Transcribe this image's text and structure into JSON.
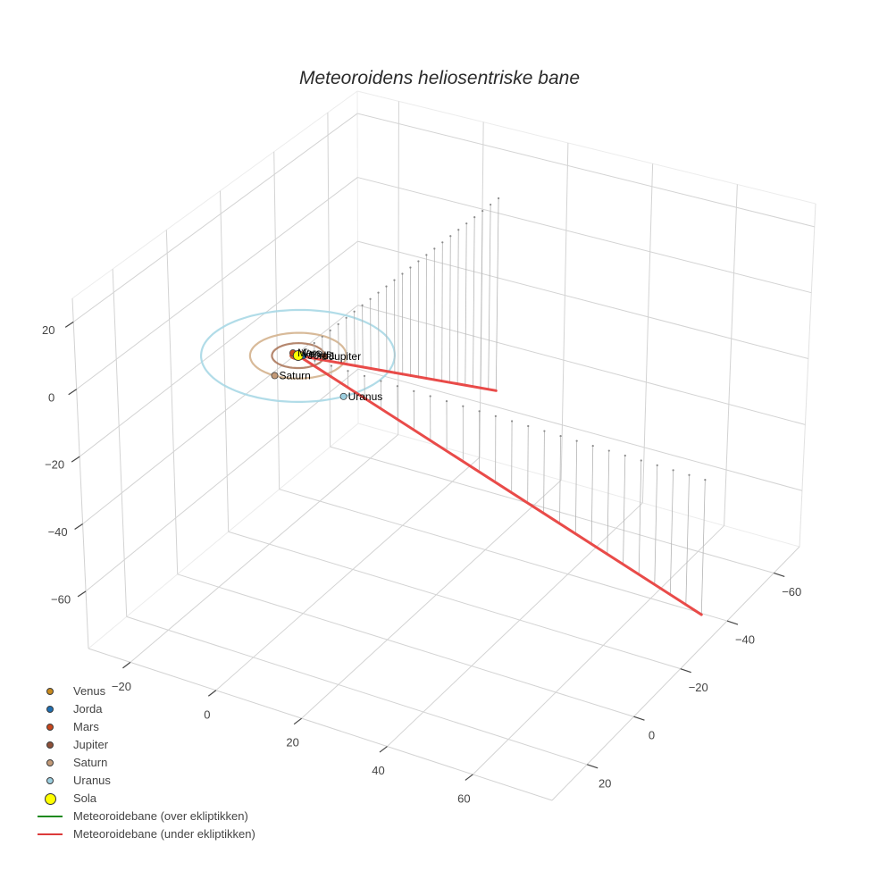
{
  "chart_data": {
    "type": "scatter3d",
    "title": "Meteoroidens heliosentriske bane",
    "axes": {
      "x": {
        "title": "",
        "range": [
          -29.8,
          78.5
        ],
        "tickvals": [
          -20,
          0,
          20,
          40,
          60
        ],
        "ticktext": [
          "−20",
          "0",
          "20",
          "40",
          "60"
        ]
      },
      "y": {
        "title": "",
        "range": [
          -71,
          35
        ],
        "tickvals": [
          20,
          0,
          -20,
          -40,
          -60
        ],
        "ticktext": [
          "20",
          "0",
          "−20",
          "−40",
          "−60"
        ]
      },
      "z": {
        "title": "",
        "range": [
          -77,
          27
        ],
        "tickvals": [
          20,
          0,
          -20,
          -40,
          -60
        ],
        "ticktext": [
          "20",
          "0",
          "−20",
          "−40",
          "−60"
        ]
      }
    },
    "grid": true,
    "legend_position": "bottom-left",
    "planets": [
      {
        "name": "Venus",
        "color": "#c98a1d",
        "orbit_color": "#c98a1d",
        "orbit_radius": 0.72,
        "position": [
          -0.5,
          -0.52,
          0
        ]
      },
      {
        "name": "Jorda",
        "color": "#1f6fb2",
        "orbit_color": "#1f6fb2",
        "orbit_radius": 1.0,
        "position": [
          0.86,
          -0.51,
          0
        ]
      },
      {
        "name": "Mars",
        "color": "#c9461c",
        "orbit_color": "#c9461c",
        "orbit_radius": 1.52,
        "position": [
          -1.46,
          -0.41,
          0
        ]
      },
      {
        "name": "Jupiter",
        "color": "#8f5038",
        "orbit_color": "#ad7a5e",
        "orbit_radius": 5.2,
        "position": [
          4.66,
          -2.31,
          0
        ]
      },
      {
        "name": "Saturn",
        "color": "#c39a78",
        "orbit_color": "#d4b28e",
        "orbit_radius": 9.54,
        "position": [
          0.28,
          9.53,
          0
        ]
      },
      {
        "name": "Uranus",
        "color": "#9ccfe0",
        "orbit_color": "#a8d8e6",
        "orbit_radius": 19.2,
        "position": [
          16.4,
          9.97,
          0
        ]
      }
    ],
    "sun": {
      "name": "Sola",
      "color": "#ffff00",
      "position": [
        0,
        0,
        0
      ]
    },
    "meteoroid_path": {
      "above_ecliptic": {
        "name": "Meteoroidebane (over ekliptikken)",
        "color": "#1f8a1f",
        "points": []
      },
      "below_ecliptic": {
        "name": "Meteoroidebane (under ekliptikken)",
        "color": "#e8413f",
        "arms": [
          {
            "start": [
              0,
              0,
              0
            ],
            "end": [
              3.8,
              -71,
              -55
            ],
            "drop_top_end_z": 4.6
          },
          {
            "start": [
              0,
              0,
              0
            ],
            "end": [
              78.5,
              -28.6,
              -67.1
            ],
            "drop_top_end_z": -27.3
          }
        ]
      }
    },
    "drop_lines": {
      "color": "#b4b4b4",
      "dot_color": "#8a8a8a",
      "count_per_arm": 25
    },
    "legend": [
      {
        "label": "Venus",
        "symbol": "circle",
        "color": "#c98a1d"
      },
      {
        "label": "Jorda",
        "symbol": "circle",
        "color": "#1f6fb2"
      },
      {
        "label": "Mars",
        "symbol": "circle",
        "color": "#c9461c"
      },
      {
        "label": "Jupiter",
        "symbol": "circle",
        "color": "#8f5038"
      },
      {
        "label": "Saturn",
        "symbol": "circle",
        "color": "#c39a78"
      },
      {
        "label": "Uranus",
        "symbol": "circle",
        "color": "#9ccfe0"
      },
      {
        "label": "Sola",
        "symbol": "circle-large",
        "color": "#ffff00"
      },
      {
        "label": "Meteoroidebane (over ekliptikken)",
        "symbol": "line",
        "color": "#1f8a1f"
      },
      {
        "label": "Meteoroidebane (under ekliptikken)",
        "symbol": "line",
        "color": "#dc3a3a"
      }
    ]
  }
}
